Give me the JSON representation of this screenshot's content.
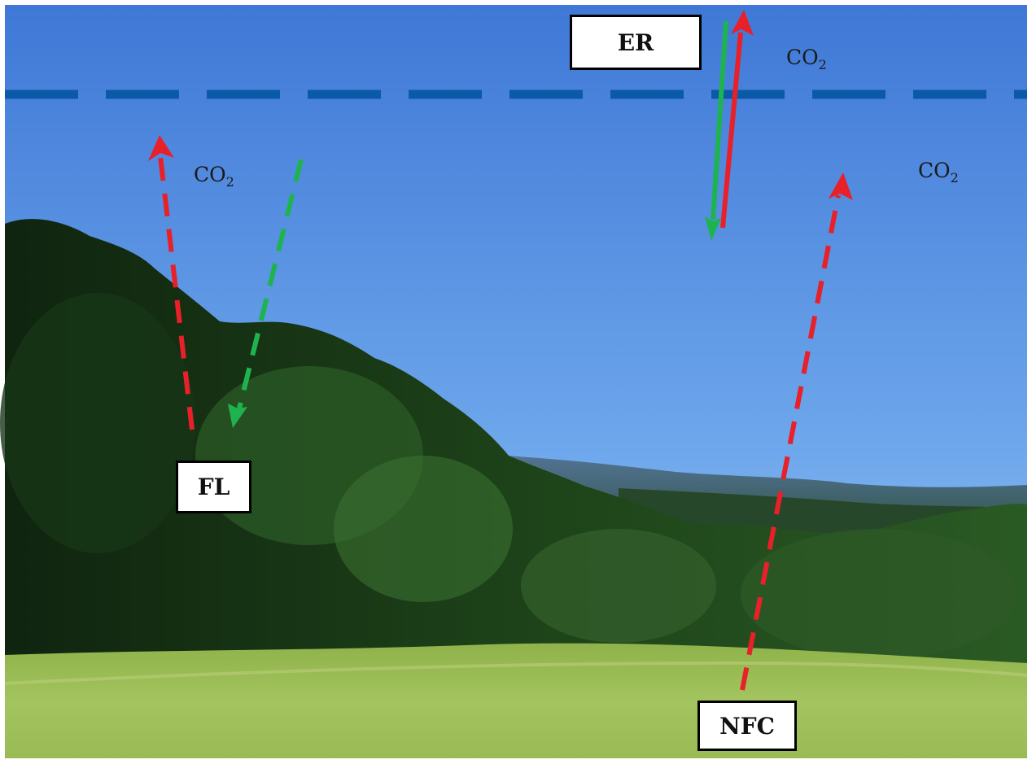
{
  "labels": {
    "er": "ER",
    "fl": "FL",
    "nfc": "NFC"
  },
  "gases": {
    "co2_left": {
      "base": "CO",
      "sub": "2"
    },
    "co2_top_right": {
      "base": "CO",
      "sub": "2"
    },
    "co2_right": {
      "base": "CO",
      "sub": "2"
    }
  },
  "colors": {
    "sky_top": "#3f78d6",
    "sky_bottom": "#8fc0f4",
    "boundary_line": "#0b5aa8",
    "emission_arrow": "#e8202a",
    "uptake_arrow": "#1fb350",
    "forest_dark": "#142f16",
    "forest_light": "#2f6a2a",
    "grass": "#9bbd55"
  }
}
